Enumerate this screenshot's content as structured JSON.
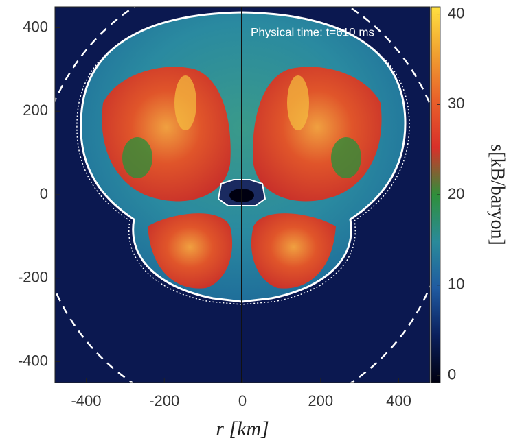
{
  "chart_data": {
    "type": "heatmap",
    "annotation": "Physical time: t=610 ms",
    "xlabel": "r [km]",
    "xlim": [
      -480,
      480
    ],
    "xticks": [
      -400,
      -200,
      0,
      200,
      400
    ],
    "ylim": [
      -450,
      450
    ],
    "yticks": [
      -400,
      -200,
      0,
      200,
      400
    ],
    "colorbar": {
      "label": "s[kB/baryon]",
      "lim": [
        -0.8,
        40.8
      ],
      "ticks": [
        0,
        10,
        20,
        30,
        40
      ],
      "colors": [
        "#000010",
        "#0a1f5c",
        "#1f5aa0",
        "#2a8a9a",
        "#2f8f3a",
        "#d8302a",
        "#e8602a",
        "#f0a030",
        "#ffe040"
      ]
    }
  }
}
